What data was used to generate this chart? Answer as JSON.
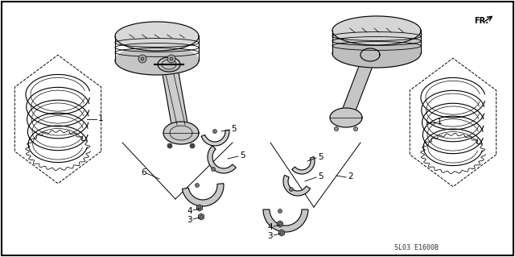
{
  "bg_color": "#ffffff",
  "line_color": "#000000",
  "gray_fill": "#d0d0d0",
  "dark_gray": "#888888",
  "part_code": "SL03 E1600B",
  "fr_label": "FR.",
  "fig_width": 6.4,
  "fig_height": 3.19,
  "dpi": 100
}
